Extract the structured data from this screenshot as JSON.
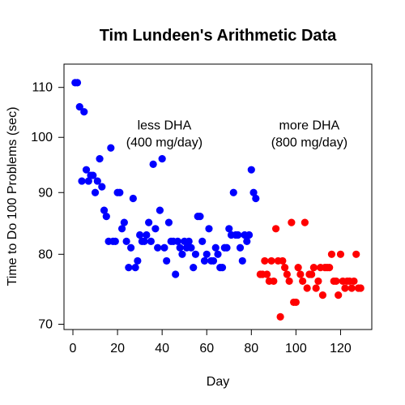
{
  "chart_data": {
    "type": "scatter",
    "title": "Tim Lundeen's Arithmetic Data",
    "xlabel": "Day",
    "ylabel": "Time to Do 100 Problems (sec)",
    "xlim": [
      -4,
      134
    ],
    "ylim": [
      69.3,
      115.0
    ],
    "y_scale": "log",
    "x_ticks": [
      0,
      20,
      40,
      60,
      80,
      100,
      120
    ],
    "y_ticks": [
      70,
      80,
      90,
      100,
      110
    ],
    "grid": false,
    "legend": "none",
    "annotations": [
      {
        "lines": [
          "less DHA",
          "(400 mg/day)"
        ],
        "x": 41,
        "y": 101.5
      },
      {
        "lines": [
          "more DHA",
          "(800 mg/day)"
        ],
        "x": 106,
        "y": 101.5
      }
    ],
    "series": [
      {
        "color": "#0000ff",
        "x": [
          1,
          2,
          3,
          4,
          5,
          6,
          7,
          8,
          9,
          10,
          11,
          12,
          13,
          14,
          15,
          16,
          17,
          18,
          19,
          20,
          21,
          22,
          23,
          24,
          25,
          26,
          27,
          28,
          29,
          30,
          31,
          32,
          33,
          34,
          35,
          36,
          37,
          38,
          39,
          40,
          41,
          42,
          43,
          44,
          45,
          46,
          47,
          48,
          49,
          50,
          51,
          52,
          53,
          54,
          55,
          56,
          57,
          58,
          59,
          60,
          61,
          62,
          63,
          64,
          65,
          66,
          67,
          68,
          69,
          70,
          71,
          72,
          73,
          74,
          75,
          76,
          77,
          78,
          79,
          80,
          81,
          82
        ],
        "y": [
          111,
          111,
          106,
          92,
          105,
          94,
          92,
          93,
          93,
          90,
          92,
          96,
          91,
          87,
          86,
          82,
          98,
          82,
          82,
          90,
          90,
          84,
          85,
          82,
          78,
          81,
          89,
          78,
          79,
          83,
          82,
          82,
          83,
          85,
          82,
          95,
          84,
          81,
          87,
          96,
          81,
          79,
          85,
          82,
          82,
          77,
          82,
          81,
          80,
          82,
          81,
          82,
          81,
          78,
          80,
          86,
          86,
          82,
          79,
          80,
          84,
          79,
          79,
          81,
          80,
          78,
          78,
          81,
          81,
          84,
          83,
          90,
          83,
          83,
          81,
          79,
          83,
          82,
          83,
          94,
          90,
          89
        ]
      },
      {
        "color": "#ff0000",
        "x": [
          84,
          85,
          86,
          87,
          88,
          89,
          90,
          91,
          92,
          93,
          94,
          95,
          96,
          97,
          98,
          99,
          100,
          101,
          102,
          103,
          104,
          105,
          106,
          107,
          108,
          109,
          110,
          111,
          112,
          113,
          114,
          115,
          116,
          117,
          118,
          119,
          120,
          121,
          122,
          123,
          124,
          125,
          126,
          127,
          128,
          129
        ],
        "y": [
          77,
          77,
          79,
          77,
          76,
          79,
          76,
          84,
          79,
          71,
          79,
          78,
          77,
          76,
          85,
          73,
          73,
          78,
          77,
          76,
          85,
          75,
          77,
          77,
          78,
          75,
          76,
          78,
          74,
          78,
          78,
          78,
          80,
          76,
          76,
          74,
          80,
          76,
          75,
          76,
          76,
          75,
          76,
          80,
          75,
          75
        ]
      }
    ]
  }
}
